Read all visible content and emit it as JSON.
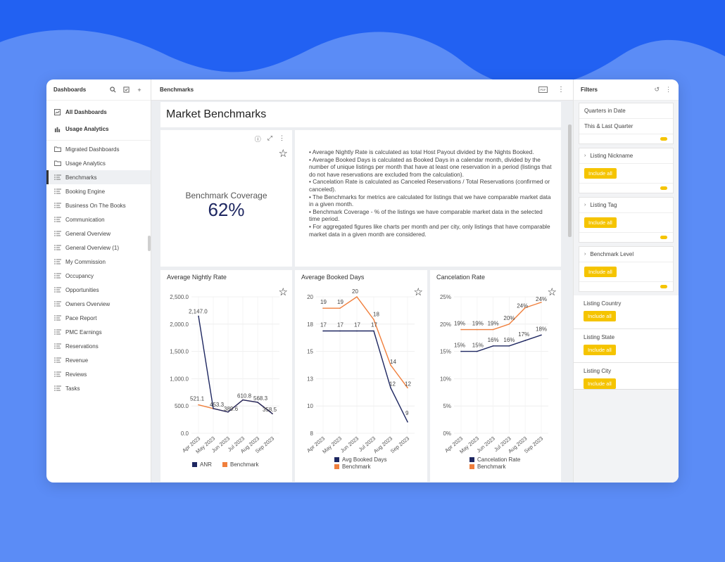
{
  "sidebar": {
    "title": "Dashboards",
    "top_items": [
      {
        "label": "All Dashboards",
        "icon": "dashboard-icon"
      },
      {
        "label": "Usage Analytics",
        "icon": "bar-chart-icon"
      }
    ],
    "items": [
      {
        "label": "Migrated Dashboards",
        "icon": "folder-icon"
      },
      {
        "label": "Usage Analytics",
        "icon": "folder-icon"
      },
      {
        "label": "Benchmarks",
        "icon": "dashboard-list-icon",
        "active": true
      },
      {
        "label": "Booking Engine",
        "icon": "dashboard-list-icon"
      },
      {
        "label": "Business On The Books",
        "icon": "dashboard-list-icon"
      },
      {
        "label": "Communication",
        "icon": "dashboard-list-icon"
      },
      {
        "label": "General Overview",
        "icon": "dashboard-list-icon"
      },
      {
        "label": "General Overview (1)",
        "icon": "dashboard-list-icon"
      },
      {
        "label": "My Commission",
        "icon": "dashboard-list-icon"
      },
      {
        "label": "Occupancy",
        "icon": "dashboard-list-icon"
      },
      {
        "label": "Opportunities",
        "icon": "dashboard-list-icon"
      },
      {
        "label": "Owners Overview",
        "icon": "dashboard-list-icon"
      },
      {
        "label": "Pace Report",
        "icon": "dashboard-list-icon"
      },
      {
        "label": "PMC Earnings",
        "icon": "dashboard-list-icon"
      },
      {
        "label": "Reservations",
        "icon": "dashboard-list-icon"
      },
      {
        "label": "Revenue",
        "icon": "dashboard-list-icon"
      },
      {
        "label": "Reviews",
        "icon": "dashboard-list-icon"
      },
      {
        "label": "Tasks",
        "icon": "dashboard-list-icon"
      }
    ]
  },
  "main": {
    "header_title": "Benchmarks",
    "pdf_label": "PDF",
    "page_title": "Market Benchmarks",
    "kpi": {
      "title": "Benchmark Coverage",
      "value": "62%"
    },
    "notes": [
      "•   Average Nightly Rate is calculated as total Host Payout divided by the Nights Booked.",
      "•   Average Booked Days is calculated as Booked Days in a calendar month, divided by the number of unique listings per month that have at least one reservation in a period (listings that do not have reservations are excluded from the calculation).",
      "•   Cancelation Rate is calculated as Canceled Reservations / Total Reservations (confirmed or canceled).",
      "•   The Benchmarks for metrics are calculated for listings that we have comparable market data in a given month.",
      "•   Benchmark Coverage - % of the listings we have comparable market data in the selected time period.",
      "•   For aggregated figures like charts per month and per city, only listings that have comparable market data in a given month are considered."
    ]
  },
  "chart_data": [
    {
      "type": "line",
      "title": "Average Nightly Rate",
      "categories": [
        "Apr 2023",
        "May 2023",
        "Jun 2023",
        "Jul 2023",
        "Aug 2023",
        "Sep 2023"
      ],
      "series": [
        {
          "name": "ANR",
          "values": [
            2147.0,
            453.3,
            389.6,
            610.8,
            568.3,
            358.5
          ],
          "color": "#1e2761"
        },
        {
          "name": "Benchmark",
          "values": [
            521.1,
            453.3,
            389.6,
            610.8,
            568.3,
            358.5
          ],
          "color": "#f07f3c"
        }
      ],
      "ylim": [
        0,
        2500
      ],
      "yticks": [
        "0.0",
        "500.0",
        "1,000.0",
        "1,500.0",
        "2,000.0",
        "2,500.0"
      ],
      "point_labels": [
        "2,147.0",
        "521.1",
        "453.3",
        "389.6",
        "610.8",
        "568.3",
        "358.5"
      ],
      "legend": "bottom"
    },
    {
      "type": "line",
      "title": "Average Booked Days",
      "categories": [
        "Apr 2023",
        "May 2023",
        "Jun 2023",
        "Jul 2023",
        "Aug 2023",
        "Sep 2023"
      ],
      "series": [
        {
          "name": "Avg Booked Days",
          "values": [
            17,
            17,
            17,
            17,
            12,
            9
          ],
          "color": "#1e2761"
        },
        {
          "name": "Benchmark",
          "values": [
            19,
            19,
            20,
            18,
            14,
            12
          ],
          "color": "#f07f3c"
        }
      ],
      "ylim": [
        8,
        20
      ],
      "yticks": [
        "8",
        "10",
        "13",
        "15",
        "18",
        "20"
      ],
      "legend": "bottom"
    },
    {
      "type": "line",
      "title": "Cancelation Rate",
      "categories": [
        "Apr 2023",
        "May 2023",
        "Jun 2023",
        "Jul 2023",
        "Aug 2023",
        "Sep 2023"
      ],
      "series": [
        {
          "name": "Cancelation Rate",
          "values": [
            15,
            15,
            16,
            16,
            17,
            18
          ],
          "color": "#1e2761"
        },
        {
          "name": "Benchmark",
          "values": [
            19,
            19,
            19,
            20,
            23,
            24
          ],
          "color": "#f07f3c"
        }
      ],
      "ylim": [
        0,
        25
      ],
      "yticks": [
        "0%",
        "5%",
        "10%",
        "15%",
        "20%",
        "25%"
      ],
      "legend": "bottom"
    }
  ],
  "filters": {
    "title": "Filters",
    "quarters_label": "Quarters in Date",
    "quarters_value": "This & Last Quarter",
    "nickname_label": "Listing Nickname",
    "tag_label": "Listing Tag",
    "level_label": "Benchmark Level",
    "country_label": "Listing Country",
    "state_label": "Listing State",
    "city_label": "Listing City",
    "include_all": "Include all"
  }
}
